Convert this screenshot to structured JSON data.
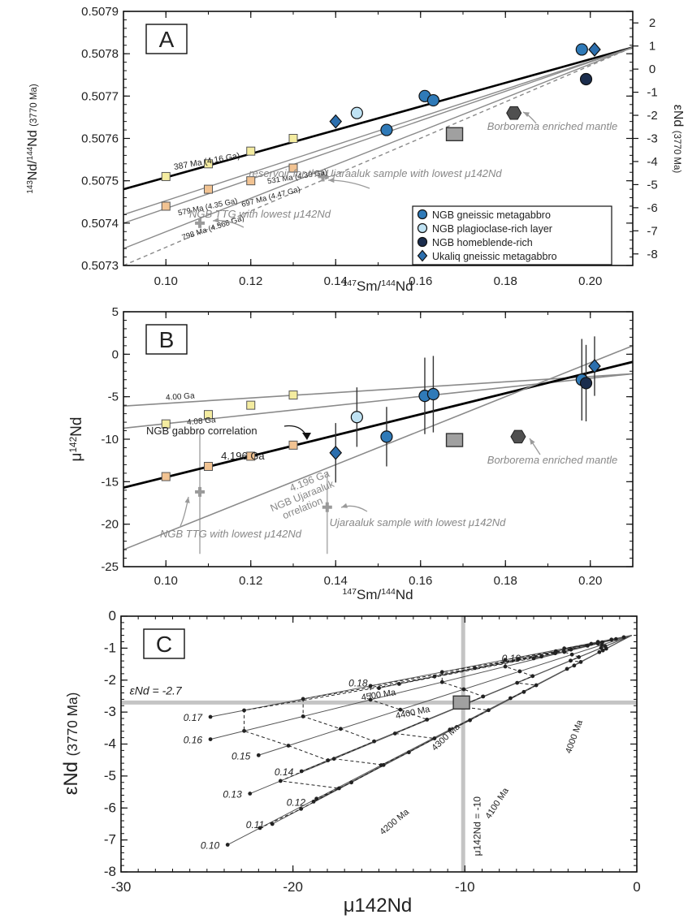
{
  "colors": {
    "gneissic": "#2f7ab8",
    "plagioclase": "#bfe2f3",
    "hornblende": "#1b2d4d",
    "ukaliq": "#2c6fae",
    "square_yellow": "#f4eca0",
    "square_orange": "#f2c392",
    "gray_square": "#a0a0a0",
    "hexagon": "#505050",
    "gray_line": "#8a8a8a",
    "guide_gray": "#c4c4c4"
  },
  "chart_data": [
    {
      "type": "scatter",
      "panel_label": "A",
      "xlabel": "147Sm/144Nd",
      "ylabel": "143Nd/144Nd (3770 Ma)",
      "y2label": "εNd (3770 Ma)",
      "xlim": [
        0.09,
        0.21
      ],
      "ylim": [
        0.5073,
        0.5079
      ],
      "y2lim": [
        -8.5,
        2.5
      ],
      "x_ticks": [
        "0.10",
        "0.12",
        "0.14",
        "0.16",
        "0.18",
        "0.20"
      ],
      "y_ticks": [
        "0.5073",
        "0.5074",
        "0.5075",
        "0.5076",
        "0.5077",
        "0.5078",
        "0.5079"
      ],
      "y2_ticks": [
        "2",
        "1",
        "0",
        "-1",
        "-2",
        "-3",
        "-4",
        "-5",
        "-6",
        "-7",
        "-8"
      ],
      "legend": {
        "placement": "bottom-right",
        "entries": [
          "NGB gneissic metagabbro",
          "NGB plagioclase-rich layer",
          "NGB homeblende-rich",
          "Ukaliq gneissic metagabbro"
        ]
      },
      "series": [
        {
          "name": "NGB gneissic metagabbro",
          "marker": "circle",
          "points": [
            [
              0.152,
              0.50762
            ],
            [
              0.161,
              0.5077
            ],
            [
              0.163,
              0.50769
            ],
            [
              0.198,
              0.50781
            ]
          ]
        },
        {
          "name": "NGB plagioclase-rich layer",
          "marker": "circle",
          "points": [
            [
              0.145,
              0.50766
            ]
          ]
        },
        {
          "name": "NGB homeblende-rich",
          "marker": "circle",
          "points": [
            [
              0.199,
              0.50774
            ]
          ]
        },
        {
          "name": "Ukaliq gneissic metagabbro",
          "marker": "diamond",
          "points": [
            [
              0.14,
              0.50764
            ],
            [
              0.201,
              0.50781
            ]
          ]
        }
      ],
      "other_points": [
        {
          "marker": "square",
          "points": [
            [
              0.168,
              0.50761
            ]
          ]
        },
        {
          "marker": "hexagon",
          "points": [
            [
              0.182,
              0.50766
            ]
          ]
        },
        {
          "marker": "cross",
          "points": [
            [
              0.108,
              0.5074
            ],
            [
              0.137,
              0.50751
            ]
          ]
        }
      ],
      "isochrons": [
        {
          "label": "387 Ma (4.16 Ga)",
          "from": [
            0.09,
            0.50748
          ],
          "to": [
            0.21,
            0.507815
          ],
          "bold": true
        },
        {
          "label": "531 Ma (4.30 Ga)",
          "from": [
            0.09,
            0.50742
          ],
          "to": [
            0.21,
            0.507815
          ]
        },
        {
          "label": "579 Ma (4.35 Ga)",
          "from": [
            0.09,
            0.5074
          ],
          "to": [
            0.21,
            0.507815
          ]
        },
        {
          "label": "697 Ma (4.47 Ga)",
          "from": [
            0.09,
            0.50734
          ],
          "to": [
            0.21,
            0.507815
          ]
        },
        {
          "label": "798 Ma (4.568 Ga)",
          "from": [
            0.09,
            0.5073
          ],
          "to": [
            0.21,
            0.507815
          ],
          "dashed": true
        }
      ],
      "square_points": [
        {
          "color": "yellow",
          "points": [
            [
              0.1,
              0.50751
            ],
            [
              0.11,
              0.50754
            ],
            [
              0.12,
              0.50757
            ],
            [
              0.13,
              0.5076
            ]
          ]
        },
        {
          "color": "orange",
          "points": [
            [
              0.1,
              0.50744
            ],
            [
              0.11,
              0.50748
            ],
            [
              0.12,
              0.5075
            ],
            [
              0.13,
              0.50753
            ]
          ]
        }
      ],
      "annotations": [
        {
          "text": "Borborema enriched mantle",
          "x": 0.192,
          "y": 0.50761
        },
        {
          "text": "reservoir for the Ujaraaluk sample with lowest μ142Nd",
          "x": 0.16,
          "y": 0.50751
        },
        {
          "text": "NGB TTG with lowest μ142Nd",
          "x": 0.138,
          "y": 0.5074
        }
      ]
    },
    {
      "type": "scatter",
      "panel_label": "B",
      "xlabel": "147Sm/144Nd",
      "ylabel": "μ142Nd",
      "xlim": [
        0.09,
        0.21
      ],
      "ylim": [
        -25,
        5
      ],
      "x_ticks": [
        "0.10",
        "0.12",
        "0.14",
        "0.16",
        "0.18",
        "0.20"
      ],
      "y_ticks": [
        "5",
        "0",
        "-5",
        "-10",
        "-15",
        "-20",
        "-25"
      ],
      "series": [
        {
          "name": "NGB gneissic metagabbro",
          "marker": "circle",
          "points": [
            [
              0.152,
              -9.7,
              3.5
            ],
            [
              0.161,
              -4.9,
              4.5
            ],
            [
              0.163,
              -4.7,
              4.5
            ],
            [
              0.198,
              -3.0,
              4.8
            ]
          ]
        },
        {
          "name": "NGB plagioclase-rich layer",
          "marker": "circle",
          "points": [
            [
              0.145,
              -7.4,
              3.5
            ]
          ]
        },
        {
          "name": "NGB homeblende-rich",
          "marker": "circle",
          "points": [
            [
              0.199,
              -3.4,
              4.5
            ]
          ]
        },
        {
          "name": "Ukaliq gneissic metagabbro",
          "marker": "diamond",
          "points": [
            [
              0.14,
              -11.6,
              3.5
            ],
            [
              0.201,
              -1.4,
              3.5
            ]
          ]
        }
      ],
      "other_points": [
        {
          "marker": "square",
          "points": [
            [
              0.168,
              -10.1
            ]
          ]
        },
        {
          "marker": "hexagon",
          "points": [
            [
              0.183,
              -9.7
            ]
          ]
        },
        {
          "marker": "cross",
          "points": [
            [
              0.108,
              -16.2
            ],
            [
              0.138,
              -18.0
            ]
          ]
        }
      ],
      "lines": [
        {
          "label": "4.00 Ga",
          "from": [
            0.09,
            -6.1
          ],
          "to": [
            0.21,
            -2.3
          ]
        },
        {
          "label": "4.08 Ga",
          "from": [
            0.09,
            -8.7
          ],
          "to": [
            0.21,
            -2.3
          ]
        },
        {
          "label": "4.196 Ga",
          "from": [
            0.09,
            -15.7
          ],
          "to": [
            0.21,
            -0.9
          ],
          "bold": true
        },
        {
          "label": "4.196 Ga NGB Ujaraaluk correlation",
          "from": [
            0.09,
            -23.0
          ],
          "to": [
            0.21,
            1.0
          ]
        }
      ],
      "square_points": [
        {
          "color": "yellow",
          "points": [
            [
              0.1,
              -8.2
            ],
            [
              0.11,
              -7.1
            ],
            [
              0.12,
              -6.0
            ],
            [
              0.13,
              -4.8
            ]
          ]
        },
        {
          "color": "orange",
          "points": [
            [
              0.1,
              -14.4
            ],
            [
              0.11,
              -13.2
            ],
            [
              0.12,
              -12.0
            ],
            [
              0.13,
              -10.7
            ]
          ]
        }
      ],
      "annotations": [
        {
          "text": "NGB gabbro correlation",
          "x": 0.108,
          "y": -9.6
        },
        {
          "text": "Borborema enriched mantle",
          "x": 0.192,
          "y": -14.0
        },
        {
          "text": "Ujaraaluk sample with lowest μ142Nd",
          "x": 0.159,
          "y": -20.0
        },
        {
          "text": "NGB TTG with lowest μ142Nd",
          "x": 0.108,
          "y": -21.0
        }
      ]
    },
    {
      "type": "line",
      "panel_label": "C",
      "xlabel": "μ142Nd",
      "ylabel": "εNd (3770 Ma)",
      "xlim": [
        -30,
        0
      ],
      "ylim": [
        -8,
        0
      ],
      "x_ticks": [
        "-30",
        "-20",
        "-10",
        "0"
      ],
      "y_ticks": [
        "0",
        "-1",
        "-2",
        "-3",
        "-4",
        "-5",
        "-6",
        "-7",
        "-8"
      ],
      "reference_lines": [
        {
          "label": "εNd = -2.7",
          "axis": "y",
          "value": -2.7
        },
        {
          "label": "μ142Nd = -10",
          "axis": "x",
          "value": -10
        }
      ],
      "highlight_point": {
        "marker": "square",
        "x": -10.2,
        "y": -2.7
      },
      "fractionation_lines": [
        {
          "label": "0.19",
          "start": [
            -6.0,
            -1.32
          ]
        },
        {
          "label": "0.18",
          "start": [
            -15.0,
            -2.25
          ]
        },
        {
          "label": "0.17",
          "start": [
            -24.8,
            -3.15
          ]
        },
        {
          "label": "0.16",
          "start": [
            -24.8,
            -3.85
          ]
        },
        {
          "label": "0.15",
          "start": [
            -22.0,
            -4.35
          ]
        },
        {
          "label": "0.14",
          "start": [
            -19.5,
            -4.85
          ]
        },
        {
          "label": "0.13",
          "start": [
            -22.5,
            -5.55
          ]
        },
        {
          "label": "0.12",
          "start": [
            -18.8,
            -5.8
          ]
        },
        {
          "label": "0.11",
          "start": [
            -21.2,
            -6.5
          ]
        },
        {
          "label": "0.10",
          "start": [
            -23.8,
            -7.15
          ]
        }
      ],
      "origin": [
        -0.3,
        -0.6
      ],
      "age_labels": [
        "4500 Ma",
        "4400 Ma",
        "4300 Ma",
        "4200 Ma",
        "4100 Ma",
        "4000 Ma"
      ]
    }
  ]
}
